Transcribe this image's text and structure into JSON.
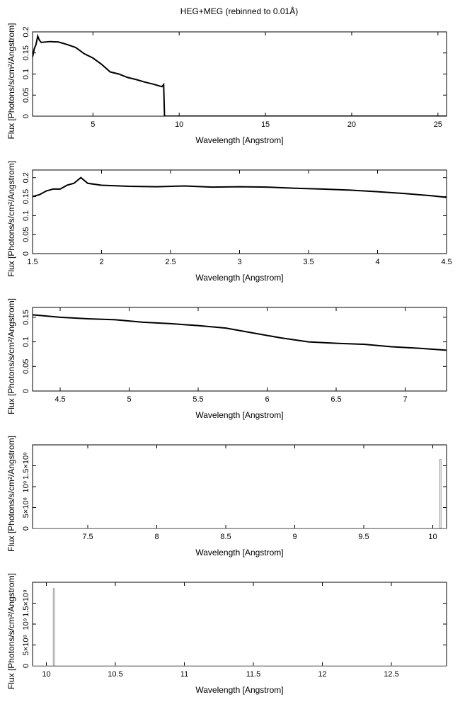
{
  "title": "HEG+MEG (rebinned to 0.01Å)",
  "colors": {
    "line": "#000000",
    "axis": "#000000",
    "background": "#ffffff"
  },
  "chart_data": [
    {
      "type": "line",
      "xlabel": "Wavelength [Angstrom]",
      "ylabel": "Flux [Photons/s/cm²/Angstrom]",
      "xlim": [
        1.5,
        25.5
      ],
      "ylim": [
        0,
        0.2
      ],
      "xticks": [
        5,
        10,
        15,
        20,
        25
      ],
      "yticks": [
        0,
        0.05,
        0.1,
        0.15,
        0.2
      ],
      "grid": false,
      "series": [
        {
          "x": [
            1.5,
            1.6,
            1.7,
            1.8,
            1.9,
            2.0,
            2.5,
            3.0,
            3.5,
            4.0,
            4.5,
            5.0,
            5.5,
            6.0,
            6.5,
            7.0,
            7.5,
            8.0,
            8.5,
            9.0,
            9.1,
            9.15,
            9.2,
            25.5
          ],
          "y": [
            0.14,
            0.16,
            0.17,
            0.19,
            0.18,
            0.175,
            0.177,
            0.176,
            0.17,
            0.163,
            0.148,
            0.138,
            0.123,
            0.105,
            0.1,
            0.092,
            0.087,
            0.081,
            0.076,
            0.07,
            0.075,
            0.0,
            0.0,
            0.0
          ]
        }
      ]
    },
    {
      "type": "line",
      "xlabel": "Wavelength [Angstrom]",
      "ylabel": "Flux [Photons/s/cm²/Angstrom]",
      "xlim": [
        1.5,
        4.5
      ],
      "ylim": [
        0,
        0.22
      ],
      "xticks": [
        1.5,
        2,
        2.5,
        3,
        3.5,
        4,
        4.5
      ],
      "yticks": [
        0,
        0.05,
        0.1,
        0.15,
        0.2
      ],
      "grid": false,
      "series": [
        {
          "x": [
            1.5,
            1.55,
            1.6,
            1.65,
            1.7,
            1.75,
            1.8,
            1.85,
            1.9,
            2.0,
            2.2,
            2.4,
            2.6,
            2.8,
            3.0,
            3.2,
            3.4,
            3.6,
            3.8,
            4.0,
            4.2,
            4.4,
            4.5
          ],
          "y": [
            0.15,
            0.155,
            0.165,
            0.17,
            0.17,
            0.18,
            0.185,
            0.2,
            0.185,
            0.18,
            0.177,
            0.176,
            0.178,
            0.175,
            0.176,
            0.175,
            0.172,
            0.17,
            0.167,
            0.163,
            0.158,
            0.152,
            0.148
          ]
        }
      ]
    },
    {
      "type": "line",
      "xlabel": "Wavelength [Angstrom]",
      "ylabel": "Flux [Photons/s/cm²/Angstrom]",
      "xlim": [
        4.3,
        7.3
      ],
      "ylim": [
        0,
        0.17
      ],
      "xticks": [
        4.5,
        5,
        5.5,
        6,
        6.5,
        7
      ],
      "yticks": [
        0,
        0.05,
        0.1,
        0.15
      ],
      "grid": false,
      "series": [
        {
          "x": [
            4.3,
            4.5,
            4.7,
            4.9,
            5.1,
            5.3,
            5.5,
            5.7,
            5.9,
            6.1,
            6.3,
            6.5,
            6.7,
            6.9,
            7.1,
            7.3
          ],
          "y": [
            0.155,
            0.15,
            0.147,
            0.145,
            0.14,
            0.137,
            0.133,
            0.128,
            0.118,
            0.108,
            0.1,
            0.097,
            0.095,
            0.09,
            0.087,
            0.083
          ]
        }
      ]
    },
    {
      "type": "line",
      "xlabel": "Wavelength [Angstrom]",
      "ylabel": "Flux [Photons/s/cm²/Angstrom]",
      "xlim": [
        7.1,
        10.1
      ],
      "ylim": [
        0,
        2000000000
      ],
      "xticks": [
        7.5,
        8,
        8.5,
        9,
        9.5,
        10
      ],
      "yticks": [
        0,
        500000000,
        1000000000,
        1500000000
      ],
      "ytick_labels": [
        "0",
        "5×10⁸",
        "10⁹",
        "1.5×10⁹"
      ],
      "grid": false,
      "series": [
        {
          "x": [
            7.1,
            10.05,
            10.05,
            10.06,
            10.06,
            10.1
          ],
          "y": [
            0,
            0,
            1650000000,
            1650000000,
            0,
            0
          ]
        }
      ]
    },
    {
      "type": "line",
      "xlabel": "Wavelength [Angstrom]",
      "ylabel": "Flux [Photons/s/cm²/Angstrom]",
      "xlim": [
        9.9,
        12.9
      ],
      "ylim": [
        0,
        2000000000
      ],
      "xticks": [
        10,
        10.5,
        11,
        11.5,
        12,
        12.5
      ],
      "yticks": [
        0,
        500000000,
        1000000000,
        1500000000
      ],
      "ytick_labels": [
        "0",
        "5×10⁸",
        "10⁹",
        "1.5×10⁹"
      ],
      "grid": false,
      "series": [
        {
          "x": [
            9.9,
            10.05,
            10.05,
            10.06,
            10.06,
            12.9
          ],
          "y": [
            0,
            0,
            1850000000,
            1850000000,
            0,
            0
          ]
        }
      ]
    }
  ]
}
